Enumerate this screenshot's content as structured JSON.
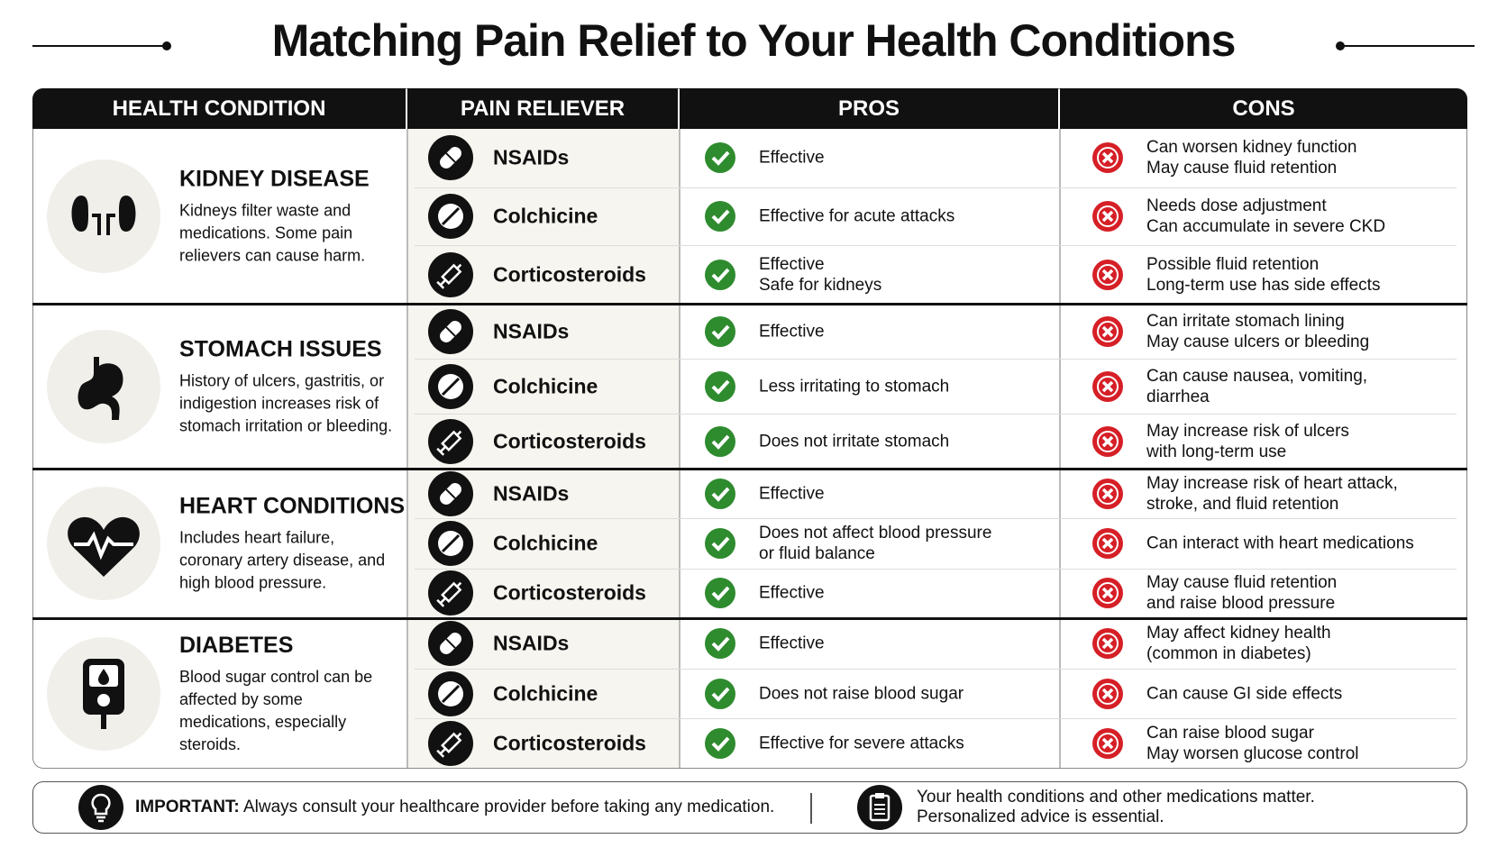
{
  "title": "Matching Pain Relief to Your Health Conditions",
  "table": {
    "headers": [
      "HEALTH CONDITION",
      "PAIN RELIEVER",
      "PROS",
      "CONS"
    ],
    "groups": [
      {
        "condition": "KIDNEY DISEASE",
        "description": "Kidneys filter waste and medications. Some pain relievers can cause harm.",
        "rows": [
          {
            "reliever": "NSAIDs",
            "pros": [
              "Effective"
            ],
            "cons": [
              "Can worsen kidney function",
              "May cause fluid retention"
            ]
          },
          {
            "reliever": "Colchicine",
            "pros": [
              "Effective for acute attacks"
            ],
            "cons": [
              "Needs dose adjustment",
              "Can accumulate in severe CKD"
            ]
          },
          {
            "reliever": "Corticosteroids",
            "pros": [
              "Effective",
              "Safe for kidneys"
            ],
            "cons": [
              "Possible fluid retention",
              "Long-term use has side effects"
            ]
          }
        ]
      },
      {
        "condition": "STOMACH ISSUES",
        "description": "History of ulcers, gastritis, or indigestion increases risk of stomach irritation or bleeding.",
        "rows": [
          {
            "reliever": "NSAIDs",
            "pros": [
              "Effective"
            ],
            "cons": [
              "Can irritate stomach lining",
              "May cause ulcers or bleeding"
            ]
          },
          {
            "reliever": "Colchicine",
            "pros": [
              "Less irritating to stomach"
            ],
            "cons": [
              "Can cause nausea, vomiting,",
              "diarrhea"
            ]
          },
          {
            "reliever": "Corticosteroids",
            "pros": [
              "Does not irritate stomach"
            ],
            "cons": [
              "May increase risk of ulcers",
              "with long-term use"
            ]
          }
        ]
      },
      {
        "condition": "HEART CONDITIONS",
        "description": "Includes heart failure, coronary artery disease, and high blood pressure.",
        "rows": [
          {
            "reliever": "NSAIDs",
            "pros": [
              "Effective"
            ],
            "cons": [
              "May increase risk of heart attack,",
              "stroke, and fluid retention"
            ]
          },
          {
            "reliever": "Colchicine",
            "pros": [
              "Does not affect blood pressure",
              "or fluid balance"
            ],
            "cons": [
              "Can interact with heart medications"
            ]
          },
          {
            "reliever": "Corticosteroids",
            "pros": [
              "Effective"
            ],
            "cons": [
              "May cause fluid retention",
              "and raise blood pressure"
            ]
          }
        ]
      },
      {
        "condition": "DIABETES",
        "description": "Blood sugar control can be affected by some medications, especially steroids.",
        "rows": [
          {
            "reliever": "NSAIDs",
            "pros": [
              "Effective"
            ],
            "cons": [
              "May affect kidney health",
              "(common in diabetes)"
            ]
          },
          {
            "reliever": "Colchicine",
            "pros": [
              "Does not raise blood sugar"
            ],
            "cons": [
              "Can cause GI side effects"
            ]
          },
          {
            "reliever": "Corticosteroids",
            "pros": [
              "Effective for severe attacks"
            ],
            "cons": [
              "Can raise blood sugar",
              "May worsen glucose control"
            ]
          }
        ]
      }
    ]
  },
  "footer": {
    "important_label": "IMPORTANT:",
    "important_text": "Always consult your healthcare provider before taking any medication.",
    "note": [
      "Your health conditions and other medications matter.",
      "Personalized advice is essential."
    ]
  }
}
